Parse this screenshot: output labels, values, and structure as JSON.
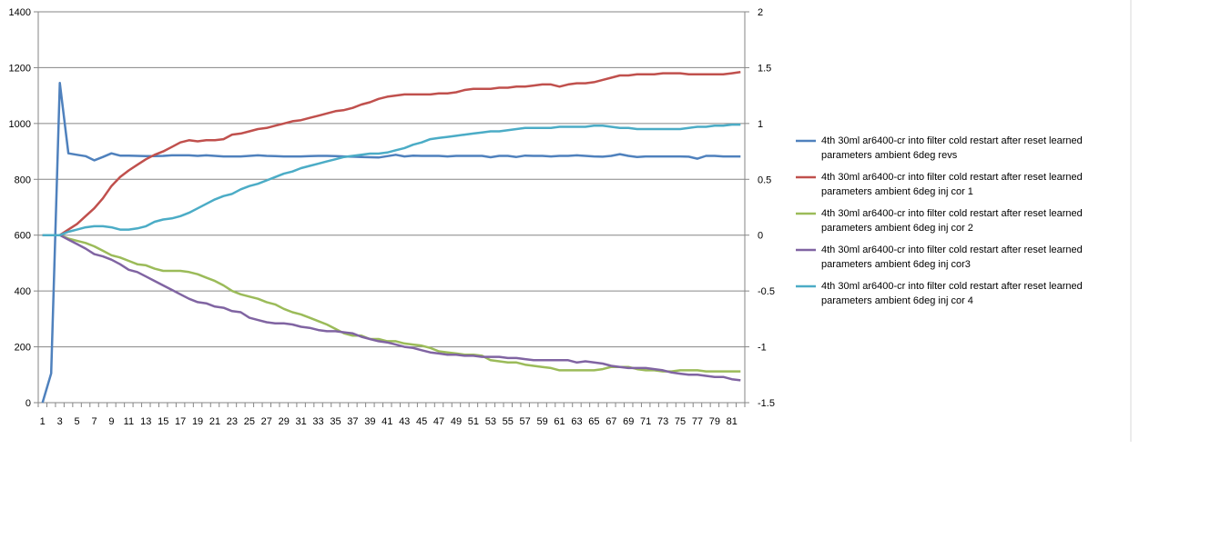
{
  "chart_data": {
    "type": "line",
    "x_ticks": [
      "1",
      "3",
      "5",
      "7",
      "9",
      "11",
      "13",
      "15",
      "17",
      "19",
      "21",
      "23",
      "25",
      "27",
      "29",
      "31",
      "33",
      "35",
      "37",
      "39",
      "41",
      "43",
      "45",
      "47",
      "49",
      "51",
      "53",
      "55",
      "57",
      "59",
      "61",
      "63",
      "65",
      "67",
      "69",
      "71",
      "73",
      "75",
      "77",
      "79",
      "81"
    ],
    "y_left": {
      "range": [
        0,
        1400
      ],
      "ticks": [
        "0",
        "200",
        "400",
        "600",
        "800",
        "1000",
        "1200",
        "1400"
      ]
    },
    "y_right": {
      "range": [
        -1.5,
        2
      ],
      "ticks": [
        "-1.5",
        "-1",
        "-0.5",
        "0",
        "0.5",
        "1",
        "1.5",
        "2"
      ]
    },
    "grid": true,
    "legend_position": "right",
    "series": [
      {
        "name": "4th 30ml ar6400-cr into filter cold restart after reset learned parameters ambient 6deg revs",
        "axis": "left",
        "color": "#4F81BD",
        "x": [
          1,
          2,
          3,
          4,
          5,
          6,
          7,
          8,
          9,
          10,
          11,
          12,
          13,
          14,
          15,
          16,
          17,
          18,
          19,
          20,
          21,
          22,
          23,
          24,
          25,
          26,
          27,
          28,
          29,
          30,
          31,
          32,
          33,
          34,
          35,
          36,
          37,
          38,
          39,
          40,
          41,
          42,
          43,
          44,
          45,
          46,
          47,
          48,
          49,
          50,
          51,
          52,
          53,
          54,
          55,
          56,
          57,
          58,
          59,
          60,
          61,
          62,
          63,
          64,
          65,
          66,
          67,
          68,
          69,
          70,
          71,
          72,
          73,
          74,
          75,
          76,
          77,
          78,
          79,
          80,
          81,
          82
        ],
        "values": [
          0,
          105,
          1145,
          893,
          888,
          883,
          868,
          880,
          893,
          885,
          885,
          884,
          883,
          883,
          884,
          886,
          886,
          886,
          884,
          886,
          884,
          882,
          882,
          882,
          884,
          886,
          884,
          883,
          882,
          882,
          882,
          883,
          884,
          884,
          883,
          882,
          881,
          880,
          879,
          878,
          883,
          888,
          882,
          885,
          884,
          884,
          884,
          882,
          884,
          884,
          884,
          884,
          879,
          884,
          884,
          880,
          885,
          884,
          884,
          882,
          884,
          884,
          886,
          884,
          882,
          881,
          884,
          890,
          884,
          880,
          882,
          882,
          882,
          882,
          882,
          881,
          874,
          884,
          884,
          882,
          882,
          882
        ]
      },
      {
        "name": "4th 30ml ar6400-cr into filter cold restart after reset learned parameters ambient 6deg inj cor 1",
        "axis": "right",
        "color": "#C0504D",
        "x": [
          1,
          3,
          4,
          5,
          6,
          7,
          8,
          9,
          10,
          11,
          12,
          13,
          14,
          15,
          16,
          17,
          18,
          19,
          20,
          21,
          22,
          23,
          24,
          25,
          26,
          27,
          28,
          29,
          30,
          31,
          32,
          33,
          34,
          35,
          36,
          37,
          38,
          39,
          40,
          41,
          42,
          43,
          44,
          45,
          46,
          47,
          48,
          49,
          50,
          51,
          52,
          53,
          54,
          55,
          56,
          57,
          58,
          59,
          60,
          61,
          62,
          63,
          64,
          65,
          66,
          67,
          68,
          69,
          70,
          71,
          72,
          73,
          74,
          75,
          76,
          77,
          78,
          79,
          80,
          81,
          82
        ],
        "values": [
          0,
          0,
          0.05,
          0.1,
          0.17,
          0.24,
          0.33,
          0.44,
          0.52,
          0.58,
          0.63,
          0.68,
          0.72,
          0.75,
          0.79,
          0.83,
          0.85,
          0.84,
          0.85,
          0.85,
          0.86,
          0.9,
          0.91,
          0.93,
          0.95,
          0.96,
          0.98,
          1.0,
          1.02,
          1.03,
          1.05,
          1.07,
          1.09,
          1.11,
          1.12,
          1.14,
          1.17,
          1.19,
          1.22,
          1.24,
          1.25,
          1.26,
          1.26,
          1.26,
          1.26,
          1.27,
          1.27,
          1.28,
          1.3,
          1.31,
          1.31,
          1.31,
          1.32,
          1.32,
          1.33,
          1.33,
          1.34,
          1.35,
          1.35,
          1.33,
          1.35,
          1.36,
          1.36,
          1.37,
          1.39,
          1.41,
          1.43,
          1.43,
          1.44,
          1.44,
          1.44,
          1.45,
          1.45,
          1.45,
          1.44,
          1.44,
          1.44,
          1.44,
          1.44,
          1.45,
          1.46
        ]
      },
      {
        "name": "4th 30ml ar6400-cr into filter cold restart after reset learned parameters ambient 6deg inj cor 2",
        "axis": "right",
        "color": "#9BBB59",
        "x": [
          1,
          3,
          4,
          5,
          6,
          7,
          8,
          9,
          10,
          11,
          12,
          13,
          14,
          15,
          16,
          17,
          18,
          19,
          20,
          21,
          22,
          23,
          24,
          25,
          26,
          27,
          28,
          29,
          30,
          31,
          32,
          33,
          34,
          35,
          36,
          37,
          38,
          39,
          40,
          41,
          42,
          43,
          44,
          45,
          46,
          47,
          48,
          49,
          50,
          51,
          52,
          53,
          54,
          55,
          56,
          57,
          58,
          59,
          60,
          61,
          62,
          63,
          64,
          65,
          66,
          67,
          68,
          69,
          70,
          71,
          72,
          73,
          74,
          75,
          76,
          77,
          78,
          79,
          80,
          81,
          82
        ],
        "values": [
          0,
          0,
          -0.03,
          -0.05,
          -0.07,
          -0.1,
          -0.14,
          -0.18,
          -0.2,
          -0.23,
          -0.26,
          -0.27,
          -0.3,
          -0.32,
          -0.32,
          -0.32,
          -0.33,
          -0.35,
          -0.38,
          -0.41,
          -0.45,
          -0.5,
          -0.53,
          -0.55,
          -0.57,
          -0.6,
          -0.62,
          -0.66,
          -0.69,
          -0.71,
          -0.74,
          -0.77,
          -0.8,
          -0.84,
          -0.88,
          -0.9,
          -0.9,
          -0.93,
          -0.93,
          -0.95,
          -0.95,
          -0.97,
          -0.98,
          -0.99,
          -1.01,
          -1.04,
          -1.05,
          -1.06,
          -1.07,
          -1.07,
          -1.08,
          -1.12,
          -1.13,
          -1.14,
          -1.14,
          -1.16,
          -1.17,
          -1.18,
          -1.19,
          -1.21,
          -1.21,
          -1.21,
          -1.21,
          -1.21,
          -1.2,
          -1.18,
          -1.18,
          -1.18,
          -1.2,
          -1.21,
          -1.21,
          -1.22,
          -1.22,
          -1.21,
          -1.21,
          -1.21,
          -1.22,
          -1.22,
          -1.22,
          -1.22,
          -1.22
        ]
      },
      {
        "name": "4th 30ml ar6400-cr into filter cold restart after reset learned parameters ambient 6deg inj cor3",
        "axis": "right",
        "color": "#8064A2",
        "x": [
          1,
          3,
          4,
          5,
          6,
          7,
          8,
          9,
          10,
          11,
          12,
          13,
          14,
          15,
          16,
          17,
          18,
          19,
          20,
          21,
          22,
          23,
          24,
          25,
          26,
          27,
          28,
          29,
          30,
          31,
          32,
          33,
          34,
          35,
          36,
          37,
          38,
          39,
          40,
          41,
          42,
          43,
          44,
          45,
          46,
          47,
          48,
          49,
          50,
          51,
          52,
          53,
          54,
          55,
          56,
          57,
          58,
          59,
          60,
          61,
          62,
          63,
          64,
          65,
          66,
          67,
          68,
          69,
          70,
          71,
          72,
          73,
          74,
          75,
          76,
          77,
          78,
          79,
          80,
          81,
          82
        ],
        "values": [
          0,
          0,
          -0.04,
          -0.08,
          -0.12,
          -0.17,
          -0.19,
          -0.22,
          -0.26,
          -0.31,
          -0.33,
          -0.37,
          -0.41,
          -0.45,
          -0.49,
          -0.53,
          -0.57,
          -0.6,
          -0.61,
          -0.64,
          -0.65,
          -0.68,
          -0.69,
          -0.74,
          -0.76,
          -0.78,
          -0.79,
          -0.79,
          -0.8,
          -0.82,
          -0.83,
          -0.85,
          -0.86,
          -0.86,
          -0.87,
          -0.88,
          -0.91,
          -0.93,
          -0.95,
          -0.96,
          -0.98,
          -1.0,
          -1.01,
          -1.03,
          -1.05,
          -1.06,
          -1.07,
          -1.07,
          -1.08,
          -1.08,
          -1.09,
          -1.09,
          -1.09,
          -1.1,
          -1.1,
          -1.11,
          -1.12,
          -1.12,
          -1.12,
          -1.12,
          -1.12,
          -1.14,
          -1.13,
          -1.14,
          -1.15,
          -1.17,
          -1.18,
          -1.19,
          -1.19,
          -1.19,
          -1.2,
          -1.21,
          -1.23,
          -1.24,
          -1.25,
          -1.25,
          -1.26,
          -1.27,
          -1.27,
          -1.29,
          -1.3
        ]
      },
      {
        "name": "4th 30ml ar6400-cr into filter cold restart after reset learned parameters ambient 6deg inj cor 4",
        "axis": "right",
        "color": "#4BACC6",
        "x": [
          1,
          3,
          4,
          5,
          6,
          7,
          8,
          9,
          10,
          11,
          12,
          13,
          14,
          15,
          16,
          17,
          18,
          19,
          20,
          21,
          22,
          23,
          24,
          25,
          26,
          27,
          28,
          29,
          30,
          31,
          32,
          33,
          34,
          35,
          36,
          37,
          38,
          39,
          40,
          41,
          42,
          43,
          44,
          45,
          46,
          47,
          48,
          49,
          50,
          51,
          52,
          53,
          54,
          55,
          56,
          57,
          58,
          59,
          60,
          61,
          62,
          63,
          64,
          65,
          66,
          67,
          68,
          69,
          70,
          71,
          72,
          73,
          74,
          75,
          76,
          77,
          78,
          79,
          80,
          81,
          82
        ],
        "values": [
          0,
          0,
          0.03,
          0.05,
          0.07,
          0.08,
          0.08,
          0.07,
          0.05,
          0.05,
          0.06,
          0.08,
          0.12,
          0.14,
          0.15,
          0.17,
          0.2,
          0.24,
          0.28,
          0.32,
          0.35,
          0.37,
          0.41,
          0.44,
          0.46,
          0.49,
          0.52,
          0.55,
          0.57,
          0.6,
          0.62,
          0.64,
          0.66,
          0.68,
          0.7,
          0.71,
          0.72,
          0.73,
          0.73,
          0.74,
          0.76,
          0.78,
          0.81,
          0.83,
          0.86,
          0.87,
          0.88,
          0.89,
          0.9,
          0.91,
          0.92,
          0.93,
          0.93,
          0.94,
          0.95,
          0.96,
          0.96,
          0.96,
          0.96,
          0.97,
          0.97,
          0.97,
          0.97,
          0.98,
          0.98,
          0.97,
          0.96,
          0.96,
          0.95,
          0.95,
          0.95,
          0.95,
          0.95,
          0.95,
          0.96,
          0.97,
          0.97,
          0.98,
          0.98,
          0.99,
          0.99
        ]
      }
    ]
  }
}
